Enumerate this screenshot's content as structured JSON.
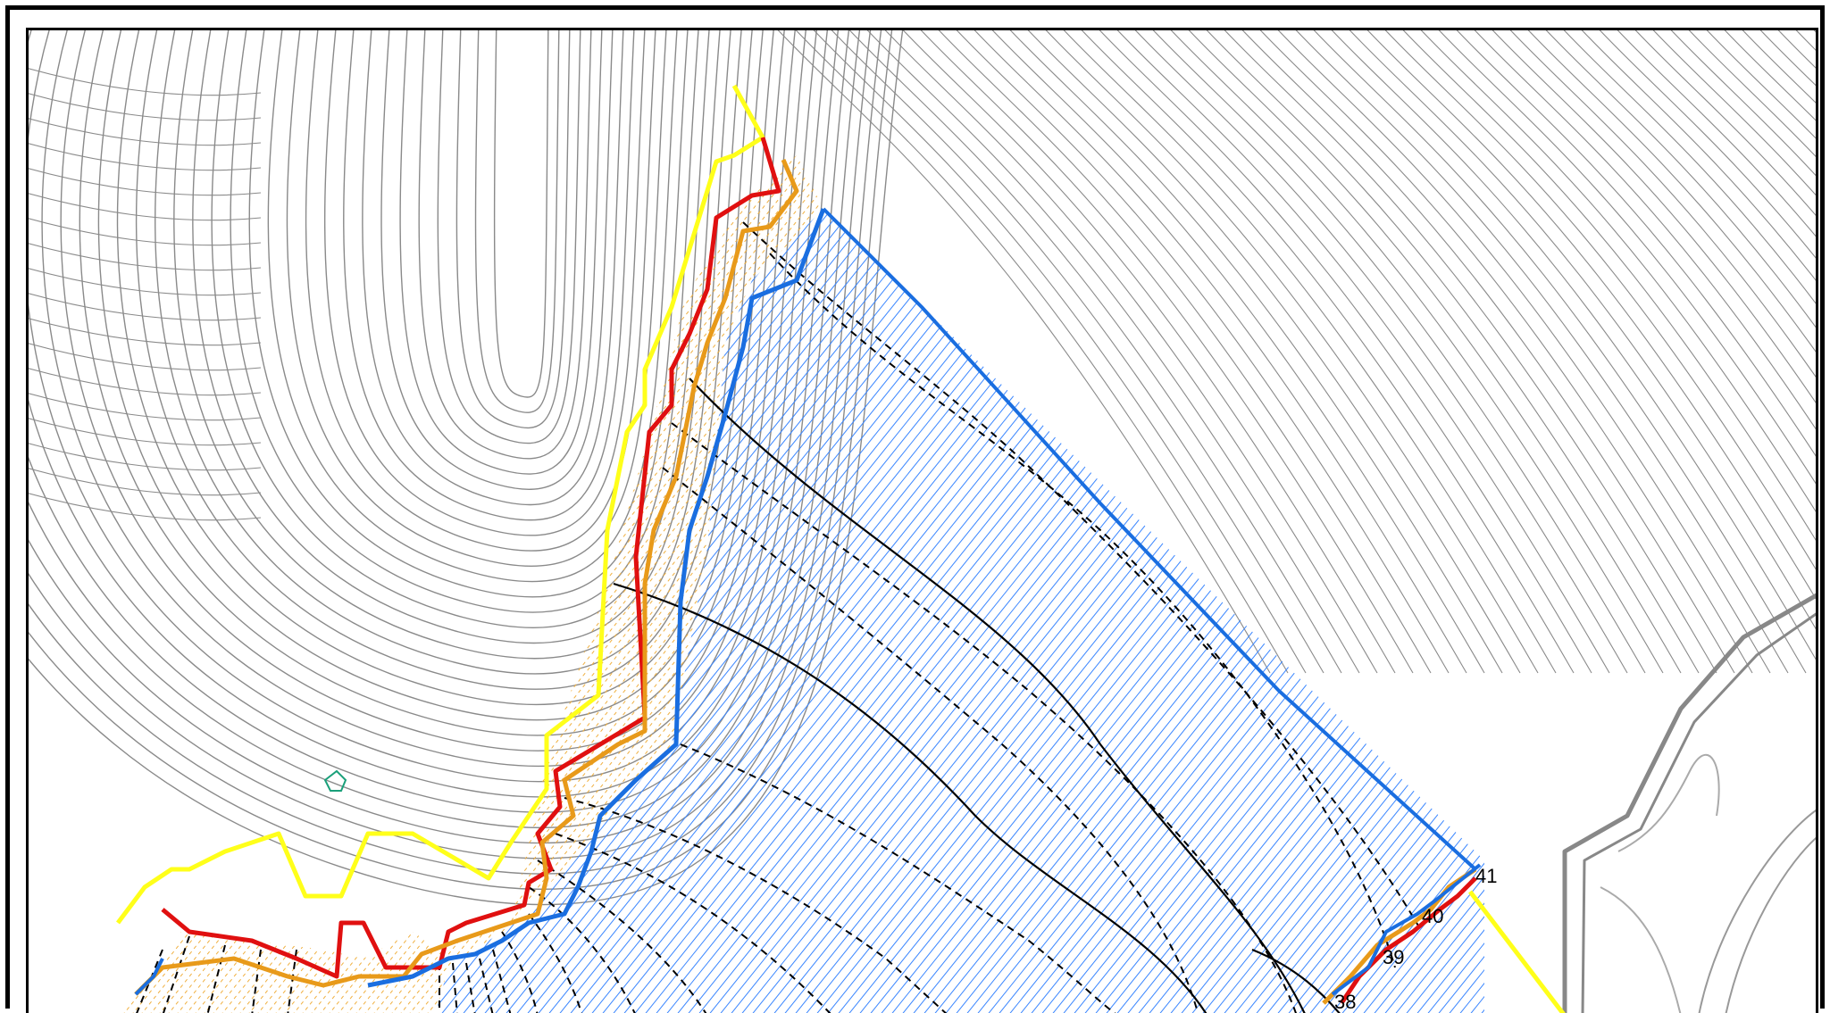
{
  "map": {
    "colors": {
      "contour": "#8a8a8a",
      "yellow_boundary": "#ffff1a",
      "red_boundary": "#e01010",
      "orange_boundary": "#e89a1a",
      "blue_boundary": "#1a6ee0",
      "hatch_blue": "#3a86ff",
      "hatch_orange": "#f0b040",
      "section_line": "#000000",
      "marker": "#1aa07a"
    },
    "section_labels": [
      "41",
      "40",
      "39",
      "38"
    ],
    "icons": [
      "section-marker-icon"
    ]
  }
}
